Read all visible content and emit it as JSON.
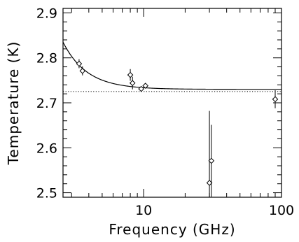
{
  "chart_data": {
    "type": "scatter",
    "title": "",
    "xlabel": "Frequency (GHz)",
    "ylabel": "Temperature (K)",
    "x_scale": "log",
    "xlim": [
      2.6,
      100
    ],
    "ylim": [
      2.49,
      2.91
    ],
    "x_ticks": [
      {
        "value": 10,
        "label": "10"
      },
      {
        "value": 100,
        "label": "100"
      }
    ],
    "y_ticks": [
      {
        "value": 2.5,
        "label": "2.5"
      },
      {
        "value": 2.6,
        "label": "2.6"
      },
      {
        "value": 2.7,
        "label": "2.7"
      },
      {
        "value": 2.8,
        "label": "2.8"
      },
      {
        "value": 2.9,
        "label": "2.9"
      }
    ],
    "grid": false,
    "points": [
      {
        "x": 3.4,
        "y": 2.787,
        "err": 0.01
      },
      {
        "x": 3.6,
        "y": 2.771,
        "err": 0.01
      },
      {
        "x": 8.0,
        "y": 2.762,
        "err": 0.013
      },
      {
        "x": 8.3,
        "y": 2.744,
        "err": 0.014
      },
      {
        "x": 9.6,
        "y": 2.731,
        "err": 0.005
      },
      {
        "x": 10.3,
        "y": 2.738,
        "err": 0.005
      },
      {
        "x": 30.0,
        "y": 2.522,
        "err": 0.16
      },
      {
        "x": 31.0,
        "y": 2.571,
        "err": 0.08
      },
      {
        "x": 90.0,
        "y": 2.708,
        "err": 0.02
      }
    ],
    "reference_line": {
      "y": 2.725,
      "style": "dotted"
    },
    "fit_curve": {
      "baseline": 2.73,
      "x_start": 2.6,
      "y_start": 2.835,
      "x_end": 100,
      "style": "solid"
    }
  }
}
